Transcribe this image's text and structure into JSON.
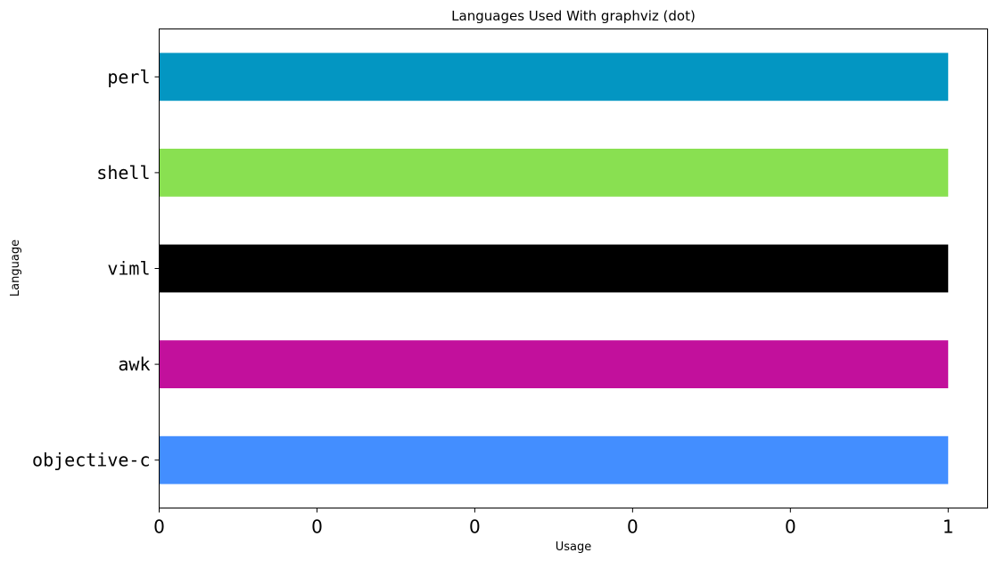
{
  "chart_data": {
    "type": "bar",
    "orientation": "horizontal",
    "title": "Languages Used With graphviz (dot)",
    "xlabel": "Usage",
    "ylabel": "Language",
    "categories": [
      "perl",
      "shell",
      "viml",
      "awk",
      "objective-c"
    ],
    "values": [
      1,
      1,
      1,
      1,
      1
    ],
    "colors": [
      "#0396c2",
      "#89e051",
      "#000000",
      "#c2109c",
      "#438eff"
    ],
    "xlim": [
      0,
      1.05
    ],
    "xticks": [
      0,
      0.2,
      0.4,
      0.6,
      0.8,
      1.0
    ],
    "xtick_labels": [
      "0",
      "0",
      "0",
      "0",
      "0",
      "1"
    ],
    "grid": false,
    "legend": false
  }
}
